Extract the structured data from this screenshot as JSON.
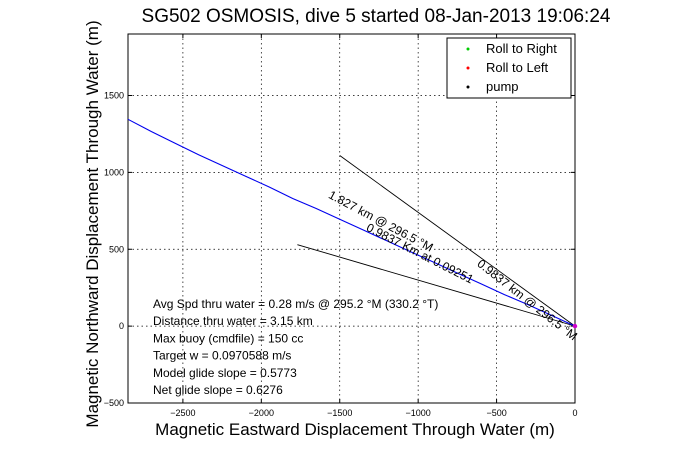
{
  "chart_data": {
    "type": "line",
    "title": "SG502 OSMOSIS, dive 5 started 08-Jan-2013 19:06:24",
    "xlabel": "Magnetic Eastward Displacement Through Water (m)",
    "ylabel": "Magnetic Northward Displacement Through Water (m)",
    "xlim": [
      -2850,
      0
    ],
    "ylim": [
      -500,
      1900
    ],
    "xticks": [
      -2500,
      -2000,
      -1500,
      -1000,
      -500,
      0
    ],
    "xtick_labels": [
      "−2500",
      "−2000",
      "−1500",
      "−1000",
      "−500",
      "0"
    ],
    "yticks": [
      -500,
      0,
      500,
      1000,
      1500
    ],
    "ytick_labels": [
      "−500",
      "0",
      "500",
      "1000",
      "1500"
    ],
    "grid": true,
    "legend_position": "top-right",
    "series": [
      {
        "name": "Roll to Right",
        "color": "#00cc00",
        "marker": "dot",
        "x": [],
        "y": []
      },
      {
        "name": "Roll to Left",
        "color": "#ff0000",
        "marker": "dot",
        "x": [],
        "y": []
      },
      {
        "name": "pump",
        "color": "#000000",
        "marker": "dot",
        "x": [],
        "y": []
      }
    ],
    "track": {
      "color": "#0000ee",
      "x": [
        -2850,
        -2700,
        -2550,
        -2400,
        -2250,
        -2100,
        -1950,
        -1800,
        -1650,
        -1500,
        -1350,
        -1200,
        -1050,
        -900,
        -750,
        -600,
        -450,
        -300,
        -150,
        0
      ],
      "y": [
        1345,
        1265,
        1190,
        1115,
        1045,
        975,
        905,
        830,
        765,
        695,
        625,
        555,
        485,
        415,
        345,
        275,
        205,
        140,
        70,
        0
      ]
    },
    "guide_lines": [
      {
        "x1": -1500,
        "y1": 1110,
        "x2": 0,
        "y2": 0
      },
      {
        "x1": -1770,
        "y1": 530,
        "x2": 0,
        "y2": 0
      }
    ],
    "rotated_annotations": [
      {
        "text": "0.9837 km @ 296.5 °M",
        "x": -320,
        "y": 150,
        "angle": 38
      },
      {
        "text": "1.827 km @ 296.5 °M",
        "x": -1250,
        "y": 660,
        "angle": 28
      },
      {
        "text": "0.9837 Km at 0.09251",
        "x": -1000,
        "y": 450,
        "angle": 27
      }
    ],
    "annotations": [
      "Avg Spd thru water =  0.28 m/s @ 295.2   °M (330.2 °T)",
      "Distance thru water =  3.15 km",
      "Max buoy (cmdfile) = 150 cc",
      "Target w = 0.0970588 m/s",
      "Model glide slope = 0.5773",
      "Net glide slope = 0.6276"
    ]
  }
}
